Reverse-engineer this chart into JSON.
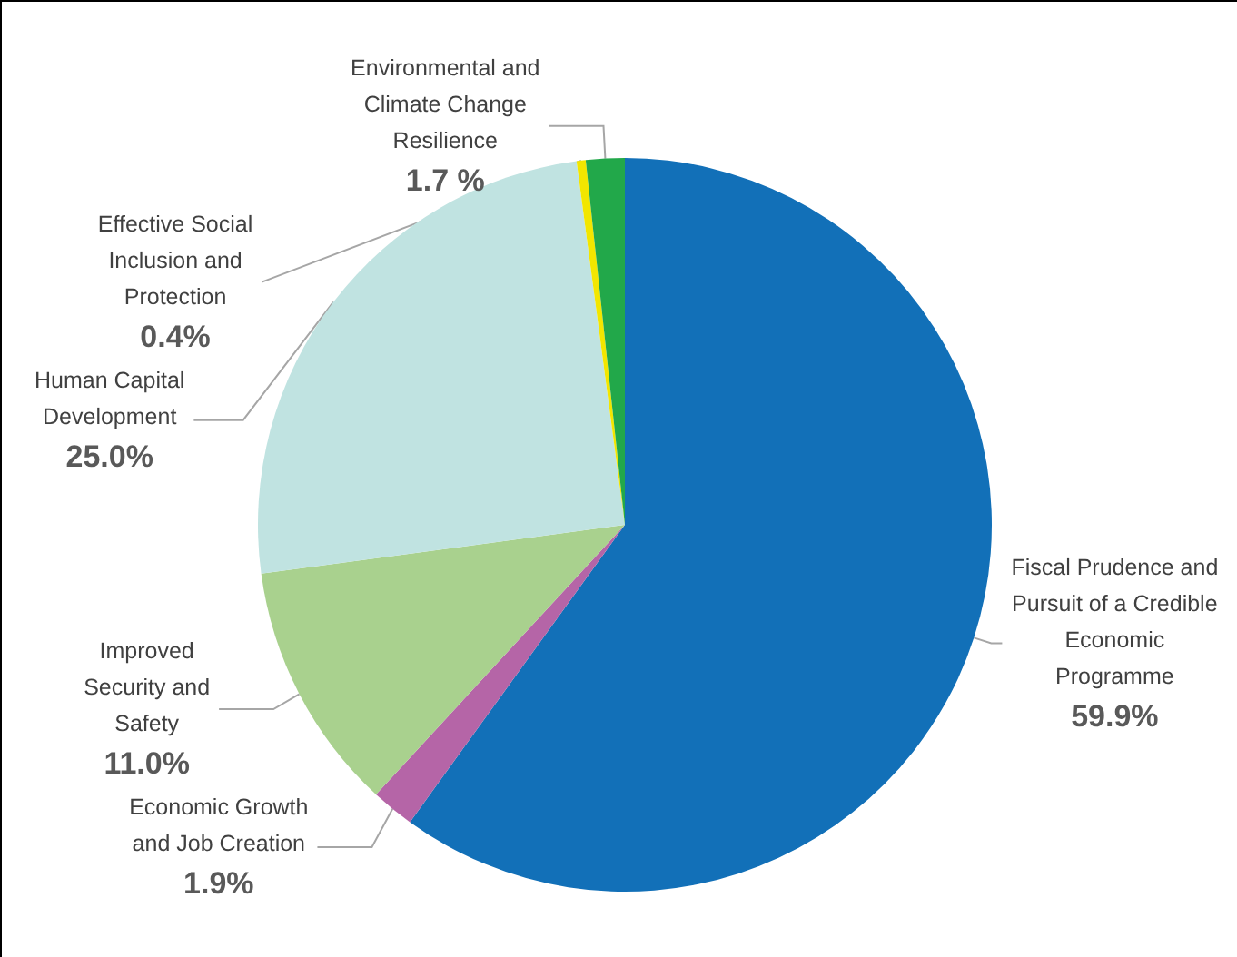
{
  "chart_data": {
    "type": "pie",
    "categories": [
      "Fiscal Prudence and\nPursuit of a Credible\nEconomic\nProgramme",
      "Economic Growth\nand Job Creation",
      "Improved\nSecurity and\nSafety",
      "Human Capital\nDevelopment",
      "Effective Social\nInclusion and\nProtection",
      "Environmental and\nClimate Change\nResilience"
    ],
    "values": [
      59.9,
      1.9,
      11.0,
      25.0,
      0.4,
      1.7
    ],
    "value_labels": [
      "59.9%",
      "1.9%",
      "11.0%",
      "25.0%",
      "0.4%",
      "1.7 %"
    ],
    "colors": [
      "#1270b8",
      "#b565a7",
      "#a9d18e",
      "#c0e3e1",
      "#f2e600",
      "#22a84a"
    ],
    "legend": false
  }
}
